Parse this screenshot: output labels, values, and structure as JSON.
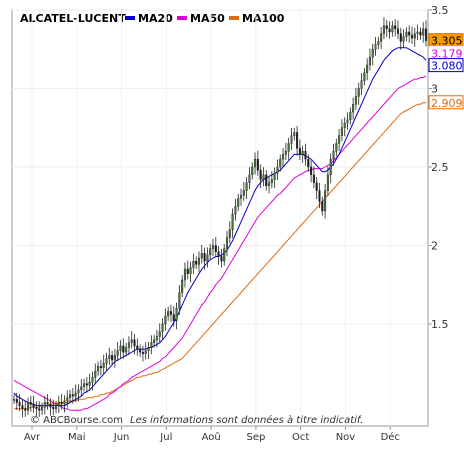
{
  "chart_data": {
    "type": "candlestick-line",
    "title": "ALCATEL-LUCENT",
    "legend": [
      {
        "name": "MA20",
        "color": "#0000cc"
      },
      {
        "name": "MA50",
        "color": "#dd00dd"
      },
      {
        "name": "MA100",
        "color": "#dd6a10"
      }
    ],
    "ylim": [
      0.85,
      3.5
    ],
    "yticks": [
      1.5,
      2,
      2.5,
      3,
      3.5
    ],
    "ytick_labels": [
      "1.5",
      "2",
      "2.5",
      "3",
      "3.5"
    ],
    "x_months": [
      "Avr",
      "Mai",
      "Jun",
      "Jul",
      "Aoû",
      "Sep",
      "Oct",
      "Nov",
      "Déc"
    ],
    "watermark": "© ABCBourse.com",
    "note": "Les informations sont données à titre indicatif.",
    "last_values": [
      {
        "label": "3.305",
        "series": "Cours"
      },
      {
        "label": "3.179",
        "series": "MA20"
      },
      {
        "label": "3.080",
        "series": "MA50"
      },
      {
        "label": "2.909",
        "series": "MA100"
      }
    ],
    "price_close": [
      1.02,
      1.0,
      0.98,
      0.96,
      0.95,
      1.0,
      0.99,
      0.97,
      0.96,
      0.95,
      0.97,
      1.0,
      0.99,
      0.97,
      0.96,
      0.98,
      1.0,
      0.99,
      1.01,
      1.03,
      1.05,
      1.04,
      1.06,
      1.08,
      1.1,
      1.12,
      1.11,
      1.13,
      1.16,
      1.2,
      1.23,
      1.22,
      1.25,
      1.28,
      1.3,
      1.27,
      1.3,
      1.33,
      1.36,
      1.32,
      1.35,
      1.38,
      1.4,
      1.36,
      1.34,
      1.32,
      1.31,
      1.33,
      1.35,
      1.38,
      1.4,
      1.42,
      1.45,
      1.5,
      1.55,
      1.58,
      1.56,
      1.52,
      1.6,
      1.7,
      1.78,
      1.85,
      1.82,
      1.86,
      1.9,
      1.88,
      1.92,
      1.95,
      1.9,
      1.94,
      1.98,
      2.0,
      1.96,
      1.93,
      1.9,
      1.98,
      2.05,
      2.1,
      2.2,
      2.25,
      2.3,
      2.32,
      2.35,
      2.4,
      2.45,
      2.5,
      2.55,
      2.48,
      2.42,
      2.45,
      2.38,
      2.4,
      2.42,
      2.46,
      2.5,
      2.55,
      2.58,
      2.6,
      2.65,
      2.7,
      2.72,
      2.62,
      2.58,
      2.6,
      2.55,
      2.5,
      2.45,
      2.4,
      2.35,
      2.28,
      2.22,
      2.35,
      2.45,
      2.55,
      2.6,
      2.65,
      2.7,
      2.75,
      2.78,
      2.8,
      2.85,
      2.9,
      2.95,
      3.0,
      3.05,
      3.1,
      3.15,
      3.2,
      3.25,
      3.28,
      3.3,
      3.35,
      3.4,
      3.38,
      3.36,
      3.4,
      3.38,
      3.35,
      3.3,
      3.33,
      3.36,
      3.34,
      3.32,
      3.35,
      3.36,
      3.34,
      3.38,
      3.305
    ],
    "ma20": [
      1.06,
      1.04,
      1.03,
      1.02,
      1.01,
      1.0,
      0.99,
      0.99,
      0.98,
      0.98,
      0.98,
      0.98,
      0.98,
      0.98,
      0.98,
      0.98,
      0.98,
      0.98,
      0.98,
      0.99,
      1.0,
      1.01,
      1.02,
      1.03,
      1.04,
      1.06,
      1.07,
      1.08,
      1.1,
      1.12,
      1.14,
      1.16,
      1.18,
      1.2,
      1.22,
      1.24,
      1.26,
      1.27,
      1.28,
      1.29,
      1.3,
      1.31,
      1.32,
      1.33,
      1.34,
      1.34,
      1.34,
      1.34,
      1.35,
      1.35,
      1.36,
      1.37,
      1.38,
      1.4,
      1.42,
      1.45,
      1.48,
      1.51,
      1.54,
      1.58,
      1.62,
      1.66,
      1.7,
      1.73,
      1.76,
      1.79,
      1.82,
      1.85,
      1.87,
      1.89,
      1.91,
      1.92,
      1.93,
      1.93,
      1.94,
      1.95,
      1.97,
      2.0,
      2.03,
      2.07,
      2.11,
      2.15,
      2.19,
      2.23,
      2.27,
      2.31,
      2.35,
      2.38,
      2.4,
      2.42,
      2.43,
      2.44,
      2.45,
      2.46,
      2.47,
      2.48,
      2.5,
      2.52,
      2.54,
      2.56,
      2.58,
      2.58,
      2.58,
      2.58,
      2.57,
      2.56,
      2.55,
      2.53,
      2.51,
      2.49,
      2.47,
      2.47,
      2.48,
      2.5,
      2.52,
      2.55,
      2.58,
      2.62,
      2.66,
      2.7,
      2.74,
      2.78,
      2.82,
      2.86,
      2.9,
      2.94,
      2.98,
      3.02,
      3.06,
      3.09,
      3.12,
      3.15,
      3.18,
      3.2,
      3.22,
      3.24,
      3.25,
      3.26,
      3.26,
      3.26,
      3.26,
      3.25,
      3.24,
      3.23,
      3.22,
      3.21,
      3.2,
      3.179
    ],
    "ma50": [
      1.14,
      1.13,
      1.12,
      1.11,
      1.1,
      1.09,
      1.08,
      1.07,
      1.06,
      1.05,
      1.04,
      1.03,
      1.02,
      1.01,
      1.0,
      0.99,
      0.98,
      0.97,
      0.96,
      0.96,
      0.95,
      0.95,
      0.95,
      0.95,
      0.95,
      0.96,
      0.96,
      0.97,
      0.98,
      0.99,
      1.0,
      1.01,
      1.02,
      1.03,
      1.05,
      1.06,
      1.07,
      1.09,
      1.1,
      1.12,
      1.13,
      1.14,
      1.16,
      1.17,
      1.18,
      1.19,
      1.2,
      1.21,
      1.22,
      1.23,
      1.24,
      1.25,
      1.26,
      1.28,
      1.29,
      1.31,
      1.33,
      1.35,
      1.37,
      1.39,
      1.41,
      1.44,
      1.47,
      1.5,
      1.53,
      1.56,
      1.59,
      1.62,
      1.64,
      1.67,
      1.7,
      1.72,
      1.75,
      1.77,
      1.79,
      1.82,
      1.85,
      1.88,
      1.91,
      1.94,
      1.97,
      2.0,
      2.03,
      2.06,
      2.09,
      2.12,
      2.15,
      2.18,
      2.2,
      2.22,
      2.24,
      2.26,
      2.28,
      2.3,
      2.32,
      2.33,
      2.35,
      2.37,
      2.39,
      2.41,
      2.43,
      2.44,
      2.45,
      2.46,
      2.47,
      2.48,
      2.48,
      2.49,
      2.49,
      2.49,
      2.49,
      2.5,
      2.51,
      2.52,
      2.54,
      2.56,
      2.58,
      2.6,
      2.62,
      2.64,
      2.66,
      2.68,
      2.7,
      2.72,
      2.74,
      2.76,
      2.78,
      2.8,
      2.82,
      2.84,
      2.86,
      2.88,
      2.9,
      2.92,
      2.94,
      2.96,
      2.98,
      3.0,
      3.01,
      3.02,
      3.03,
      3.04,
      3.05,
      3.06,
      3.06,
      3.07,
      3.07,
      3.08
    ],
    "ma100": [
      0.96,
      0.96,
      0.96,
      0.96,
      0.96,
      0.96,
      0.97,
      0.97,
      0.97,
      0.97,
      0.98,
      0.98,
      0.98,
      0.99,
      0.99,
      0.99,
      1.0,
      1.0,
      1.0,
      1.0,
      1.01,
      1.01,
      1.01,
      1.02,
      1.02,
      1.02,
      1.03,
      1.03,
      1.03,
      1.04,
      1.04,
      1.05,
      1.05,
      1.06,
      1.06,
      1.07,
      1.08,
      1.09,
      1.1,
      1.11,
      1.12,
      1.13,
      1.14,
      1.15,
      1.16,
      1.16,
      1.17,
      1.17,
      1.18,
      1.18,
      1.19,
      1.19,
      1.2,
      1.21,
      1.22,
      1.23,
      1.24,
      1.25,
      1.26,
      1.27,
      1.28,
      1.3,
      1.32,
      1.34,
      1.36,
      1.38,
      1.4,
      1.42,
      1.44,
      1.46,
      1.48,
      1.5,
      1.52,
      1.54,
      1.56,
      1.58,
      1.6,
      1.62,
      1.64,
      1.66,
      1.68,
      1.7,
      1.72,
      1.74,
      1.76,
      1.78,
      1.8,
      1.82,
      1.84,
      1.86,
      1.88,
      1.9,
      1.92,
      1.94,
      1.96,
      1.98,
      2.0,
      2.02,
      2.04,
      2.06,
      2.08,
      2.1,
      2.12,
      2.14,
      2.16,
      2.18,
      2.2,
      2.22,
      2.24,
      2.26,
      2.28,
      2.3,
      2.32,
      2.34,
      2.36,
      2.38,
      2.4,
      2.42,
      2.44,
      2.46,
      2.48,
      2.5,
      2.52,
      2.54,
      2.56,
      2.58,
      2.6,
      2.62,
      2.64,
      2.66,
      2.68,
      2.7,
      2.72,
      2.74,
      2.76,
      2.78,
      2.8,
      2.82,
      2.84,
      2.85,
      2.86,
      2.87,
      2.88,
      2.89,
      2.9,
      2.9,
      2.91,
      2.909
    ],
    "colors": {
      "candle_up": "#4a7a3a",
      "candle_down": "#1a1a1a",
      "badge_price_bg": "#ff9900",
      "frame": "#999999"
    }
  }
}
